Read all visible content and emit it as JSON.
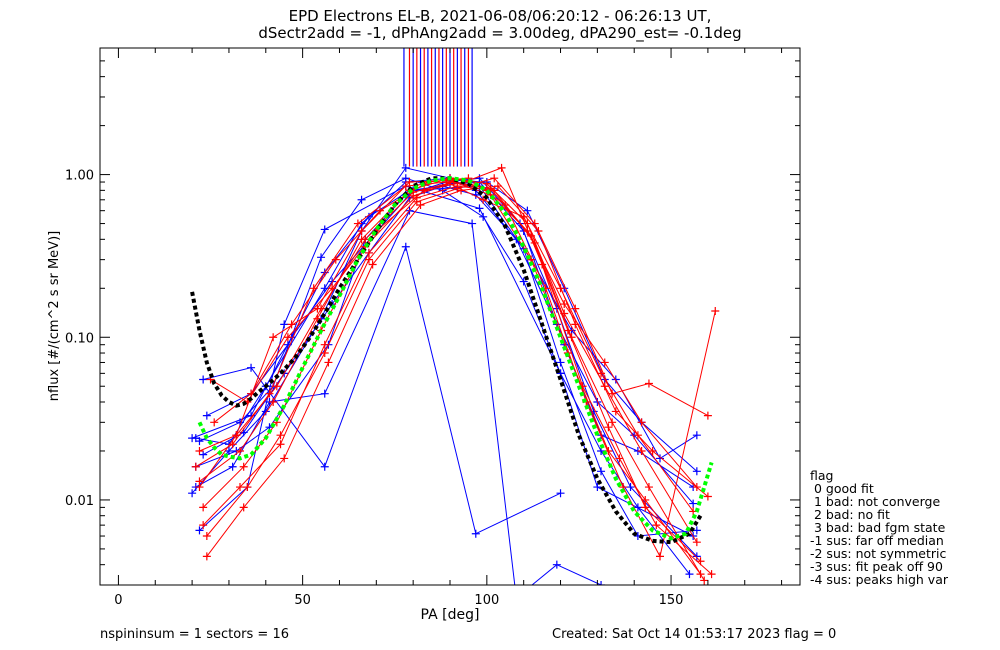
{
  "chart_data": {
    "type": "line",
    "title": "EPD Electrons EL-B, 2021-06-08/06:20:12 - 06:26:13 UT,",
    "subtitle": "dSectr2add = -1, dPhAng2add = 3.00deg, dPA290_est=  -0.1deg",
    "xlabel": "PA [deg]",
    "ylabel": "nflux [#/(cm^2 s sr MeV)]",
    "xlim": [
      -5,
      185
    ],
    "ylim": [
      0.003,
      6.0
    ],
    "yscale": "log",
    "x_ticks": [
      0,
      50,
      100,
      150
    ],
    "y_ticks": [
      {
        "value": 0.01,
        "label": "0.01"
      },
      {
        "value": 0.1,
        "label": "0.10"
      },
      {
        "value": 1.0,
        "label": "1.00"
      }
    ],
    "colors": {
      "blue": "#0000ff",
      "red": "#ff0000",
      "black_fit": "#000000",
      "green_fit": "#00ff00"
    },
    "vertical_markers": {
      "x": [
        77.5,
        79.0,
        80.0,
        81.0,
        82.0,
        83.0,
        84.0,
        85.0,
        86.0,
        87.0,
        88.0,
        89.0,
        90.0,
        91.0,
        92.0,
        93.0,
        94.0,
        95.0,
        96.0
      ],
      "y_from": 1.12,
      "y_to": 6.0
    },
    "series": [
      {
        "color": "blue",
        "x": [
          21,
          30,
          40,
          56,
          66,
          78,
          90,
          98,
          110,
          121,
          131,
          141,
          156
        ],
        "y": [
          0.024,
          0.022,
          0.05,
          0.2,
          0.5,
          0.9,
          0.95,
          0.9,
          0.45,
          0.09,
          0.025,
          0.02,
          0.012
        ]
      },
      {
        "color": "blue",
        "x": [
          20,
          30,
          40,
          55,
          66,
          78,
          90,
          97,
          110,
          120,
          131,
          141,
          157
        ],
        "y": [
          0.011,
          0.02,
          0.035,
          0.13,
          0.45,
          1.1,
          0.95,
          0.8,
          0.35,
          0.07,
          0.015,
          0.006,
          0.0065
        ]
      },
      {
        "color": "blue",
        "x": [
          22,
          35,
          45,
          56,
          78,
          98,
          120,
          130,
          156
        ],
        "y": [
          0.0065,
          0.012,
          0.12,
          0.46,
          0.85,
          0.62,
          0.06,
          0.012,
          0.006
        ]
      },
      {
        "color": "blue",
        "x": [
          23,
          36,
          56,
          78,
          97,
          109,
          120,
          131,
          140
        ],
        "y": [
          0.055,
          0.065,
          0.016,
          0.36,
          0.0062,
          0.0,
          0.011,
          0.0,
          0.0
        ]
      },
      {
        "color": "blue",
        "x": [
          24,
          36,
          46,
          56,
          68,
          79,
          88,
          97,
          108,
          119,
          130,
          140,
          156
        ],
        "y": [
          0.033,
          0.045,
          0.09,
          0.25,
          0.55,
          0.8,
          0.85,
          0.75,
          0.4,
          0.12,
          0.04,
          0.025,
          0.0095
        ]
      },
      {
        "color": "blue",
        "x": [
          21,
          32,
          41,
          57,
          67,
          78,
          89,
          98,
          109,
          119,
          129,
          139,
          157
        ],
        "y": [
          0.016,
          0.02,
          0.028,
          0.09,
          0.4,
          0.75,
          0.9,
          0.95,
          0.5,
          0.15,
          0.035,
          0.012,
          0.0045
        ]
      },
      {
        "color": "blue",
        "x": [
          22,
          33,
          42,
          55,
          66,
          78,
          88,
          99,
          110,
          120,
          131,
          141,
          155
        ],
        "y": [
          0.023,
          0.03,
          0.05,
          0.31,
          0.7,
          0.95,
          0.8,
          0.55,
          0.22,
          0.06,
          0.02,
          0.009,
          0.0035
        ]
      },
      {
        "color": "blue",
        "x": [
          23,
          34,
          45,
          58,
          68,
          79,
          90,
          100,
          111,
          121,
          132,
          142,
          157
        ],
        "y": [
          0.019,
          0.026,
          0.06,
          0.16,
          0.33,
          0.72,
          0.88,
          0.9,
          0.6,
          0.2,
          0.055,
          0.03,
          0.015
        ]
      },
      {
        "color": "blue",
        "x": [
          21,
          31,
          41,
          56,
          79,
          96,
          108,
          119,
          131,
          140,
          155
        ],
        "y": [
          0.012,
          0.016,
          0.04,
          0.045,
          0.6,
          0.5,
          0.0025,
          0.004,
          0.003,
          0.0025,
          0.0022
        ]
      },
      {
        "color": "blue",
        "x": [
          20,
          36,
          47,
          58,
          80,
          98,
          112,
          123,
          135,
          147,
          157
        ],
        "y": [
          0.024,
          0.033,
          0.1,
          0.22,
          0.8,
          0.85,
          0.3,
          0.11,
          0.055,
          0.018,
          0.025
        ]
      },
      {
        "color": "red",
        "x": [
          22,
          32,
          43,
          55,
          67,
          80,
          91,
          101,
          112,
          122,
          133,
          143,
          158
        ],
        "y": [
          0.02,
          0.025,
          0.05,
          0.15,
          0.4,
          0.78,
          0.9,
          0.75,
          0.3,
          0.08,
          0.02,
          0.01,
          0.0035
        ]
      },
      {
        "color": "red",
        "x": [
          23,
          33,
          44,
          56,
          68,
          81,
          92,
          102,
          113,
          123,
          134,
          144,
          159
        ],
        "y": [
          0.007,
          0.012,
          0.022,
          0.09,
          0.33,
          0.72,
          0.85,
          0.8,
          0.38,
          0.1,
          0.03,
          0.012,
          0.0032
        ]
      },
      {
        "color": "red",
        "x": [
          24,
          34,
          45,
          57,
          69,
          82,
          93,
          103,
          114,
          124,
          135,
          145,
          160
        ],
        "y": [
          0.0045,
          0.009,
          0.018,
          0.07,
          0.28,
          0.65,
          0.8,
          0.85,
          0.45,
          0.12,
          0.035,
          0.02,
          0.0105
        ]
      },
      {
        "color": "red",
        "x": [
          22,
          33,
          42,
          54,
          66,
          79,
          90,
          100,
          111,
          121,
          132,
          142,
          157
        ],
        "y": [
          0.013,
          0.02,
          0.04,
          0.13,
          0.4,
          0.8,
          0.95,
          0.88,
          0.5,
          0.14,
          0.05,
          0.02,
          0.0055
        ]
      },
      {
        "color": "red",
        "x": [
          25,
          35,
          46,
          58,
          70,
          83,
          94,
          104,
          115,
          126,
          136,
          146,
          161
        ],
        "y": [
          0.055,
          0.04,
          0.1,
          0.2,
          0.45,
          0.8,
          0.9,
          1.1,
          0.28,
          0.05,
          0.018,
          0.007,
          0.0035
        ]
      },
      {
        "color": "red",
        "x": [
          23,
          34,
          43,
          55,
          67,
          80,
          91,
          101,
          112,
          122,
          133,
          143,
          158
        ],
        "y": [
          0.009,
          0.016,
          0.03,
          0.11,
          0.36,
          0.74,
          0.9,
          0.82,
          0.42,
          0.11,
          0.028,
          0.009,
          0.0042
        ]
      },
      {
        "color": "red",
        "x": [
          21,
          31,
          41,
          53,
          65,
          78,
          89,
          99,
          110,
          120,
          131,
          141,
          156
        ],
        "y": [
          0.016,
          0.022,
          0.045,
          0.2,
          0.5,
          0.85,
          0.9,
          0.7,
          0.55,
          0.2,
          0.06,
          0.025,
          0.0085
        ]
      },
      {
        "color": "red",
        "x": [
          24,
          35,
          44,
          56,
          68,
          81,
          92,
          102,
          113,
          124,
          134,
          144,
          160
        ],
        "y": [
          0.006,
          0.012,
          0.025,
          0.08,
          0.3,
          0.68,
          0.82,
          0.95,
          0.5,
          0.15,
          0.045,
          0.052,
          0.033
        ]
      },
      {
        "color": "red",
        "x": [
          26,
          36,
          47,
          59,
          71,
          84,
          95,
          105,
          116,
          127,
          137,
          147,
          162
        ],
        "y": [
          0.03,
          0.045,
          0.12,
          0.3,
          0.6,
          0.9,
          0.95,
          0.65,
          0.2,
          0.04,
          0.012,
          0.0045,
          0.145
        ]
      },
      {
        "color": "red",
        "x": [
          22,
          32,
          42,
          54,
          66,
          79,
          90,
          100,
          111,
          121,
          132,
          142,
          157
        ],
        "y": [
          0.012,
          0.025,
          0.1,
          0.15,
          0.45,
          0.9,
          0.92,
          0.8,
          0.45,
          0.16,
          0.07,
          0.03,
          0.012
        ]
      }
    ],
    "fits": [
      {
        "color": "black_fit",
        "x": [
          20,
          22,
          24,
          26,
          28,
          30,
          32,
          34,
          36,
          38,
          40,
          44,
          48,
          52,
          56,
          60,
          65,
          70,
          75,
          80,
          85,
          90,
          95,
          100,
          105,
          110,
          115,
          120,
          125,
          130,
          135,
          140,
          145,
          150,
          155,
          158
        ],
        "y": [
          0.19,
          0.11,
          0.07,
          0.052,
          0.044,
          0.04,
          0.038,
          0.039,
          0.042,
          0.046,
          0.05,
          0.06,
          0.075,
          0.1,
          0.14,
          0.2,
          0.3,
          0.45,
          0.65,
          0.85,
          0.95,
          0.95,
          0.88,
          0.72,
          0.48,
          0.26,
          0.12,
          0.055,
          0.025,
          0.0135,
          0.0085,
          0.0062,
          0.0056,
          0.0055,
          0.0062,
          0.008
        ]
      },
      {
        "color": "green_fit",
        "x": [
          22,
          24,
          26,
          28,
          30,
          33,
          36,
          40,
          45,
          50,
          55,
          60,
          65,
          70,
          75,
          80,
          85,
          90,
          95,
          100,
          105,
          110,
          115,
          120,
          125,
          130,
          135,
          140,
          145,
          150,
          154,
          157,
          159,
          161
        ],
        "y": [
          0.03,
          0.024,
          0.021,
          0.019,
          0.0185,
          0.018,
          0.019,
          0.024,
          0.038,
          0.065,
          0.11,
          0.18,
          0.3,
          0.46,
          0.65,
          0.82,
          0.92,
          0.95,
          0.92,
          0.8,
          0.58,
          0.36,
          0.2,
          0.1,
          0.05,
          0.025,
          0.0135,
          0.0085,
          0.0065,
          0.0058,
          0.0062,
          0.0085,
          0.012,
          0.017
        ]
      }
    ]
  },
  "legend": {
    "items": [
      "flag",
      " 0 good fit",
      " 1 bad: not converge",
      " 2 bad: no fit",
      " 3 bad: bad fgm state",
      "-1 sus: far off median",
      "-2 sus: not symmetric",
      "-3 sus: fit peak off 90",
      "-4 sus: peaks high var"
    ]
  },
  "footer": {
    "left": "nspininsum =  1  sectors = 16",
    "right": "Created: Sat Oct 14 01:53:17 2023   flag = 0"
  }
}
